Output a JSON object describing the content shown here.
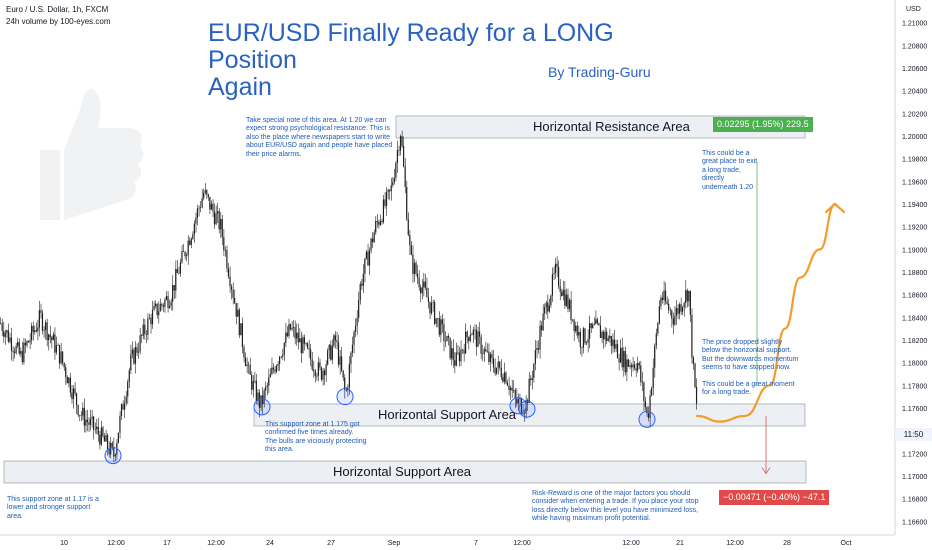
{
  "header": {
    "symbol": "Euro / U.S. Dollar, 1h, FXCM",
    "volume_label": "24h volume by 100-eyes.com",
    "currency": "USD"
  },
  "title": {
    "line1": "EUR/USD Finally Ready for a LONG Position",
    "line2": "Again",
    "author": "By Trading-Guru"
  },
  "colors": {
    "title": "#2962c4",
    "candle": "#1f1f1f",
    "zone_fill": "#eceff3",
    "projection": "#f39c2a",
    "profit": "#4caf50",
    "loss": "#e04a4a",
    "circle": "#2962ff"
  },
  "annotations": {
    "resistance_note": "Take special note of this area. At 1.20 we can expect strong psychological resistance. This is also the place where newspapers start to write about EUR/USD again and people have placed their price alarms.",
    "exit_note": "This could be a great place to exit a long trade, directly underneath 1.20",
    "drop_note": "The price dropped slightly below the horizontal support. But the downwards momentum seems to have stopped now.",
    "moment_note": "This could be a great moment for a long trade.",
    "support_1175_note": "This support zone at 1.175 got confirmed five times already. The bulls are viciously protecting this area.",
    "support_117_note": "This support zone at 1.17 is a lower and stronger support area.",
    "risk_reward_note": "Risk-Reward is one of the major factors you should consider when entering a trade. If you place your stop loss directly below this level you have minimized loss, while having maximum profit potential."
  },
  "zones": {
    "resistance_label": "Horizontal Resistance Area",
    "support_upper_label": "Horizontal Support Area",
    "support_lower_label": "Horizontal Support Area"
  },
  "position": {
    "profit_label": "0.02295 (1.95%) 229.5",
    "loss_label": "−0.00471 (−0.40%) −47.1"
  },
  "price_tag": "11:50",
  "chart_data": {
    "type": "candlestick",
    "title": "EUR/USD Finally Ready for a LONG Position Again",
    "ylim": [
      1.1635,
      1.212
    ],
    "y_ticks": [
      "1.21200",
      "1.21000",
      "1.20800",
      "1.20600",
      "1.20400",
      "1.20200",
      "1.20000",
      "1.19800",
      "1.19600",
      "1.19400",
      "1.19200",
      "1.19000",
      "1.18800",
      "1.18600",
      "1.18400",
      "1.18200",
      "1.18000",
      "1.17800",
      "1.17600",
      "1.17400",
      "1.17200",
      "1.17000",
      "1.16800",
      "1.16600"
    ],
    "x_ticks": [
      "10",
      "12:00",
      "17",
      "12:00",
      "24",
      "27",
      "Sep",
      "7",
      "12:00",
      "12:00",
      "21",
      "12:00",
      "28",
      "Oct"
    ],
    "price_path": [
      [
        0,
        1.1835
      ],
      [
        20,
        1.1805
      ],
      [
        40,
        1.184
      ],
      [
        60,
        1.1805
      ],
      [
        80,
        1.1755
      ],
      [
        100,
        1.1735
      ],
      [
        113,
        1.1718
      ],
      [
        130,
        1.18
      ],
      [
        150,
        1.184
      ],
      [
        170,
        1.186
      ],
      [
        185,
        1.19
      ],
      [
        203,
        1.195
      ],
      [
        220,
        1.192
      ],
      [
        235,
        1.185
      ],
      [
        248,
        1.179
      ],
      [
        260,
        1.1762
      ],
      [
        275,
        1.18
      ],
      [
        290,
        1.183
      ],
      [
        305,
        1.181
      ],
      [
        320,
        1.179
      ],
      [
        335,
        1.182
      ],
      [
        345,
        1.177
      ],
      [
        360,
        1.187
      ],
      [
        375,
        1.192
      ],
      [
        390,
        1.195
      ],
      [
        400,
        1.2005
      ],
      [
        410,
        1.189
      ],
      [
        425,
        1.186
      ],
      [
        440,
        1.183
      ],
      [
        455,
        1.18
      ],
      [
        470,
        1.183
      ],
      [
        490,
        1.18
      ],
      [
        505,
        1.179
      ],
      [
        515,
        1.1765
      ],
      [
        525,
        1.1762
      ],
      [
        540,
        1.183
      ],
      [
        555,
        1.188
      ],
      [
        568,
        1.185
      ],
      [
        580,
        1.182
      ],
      [
        595,
        1.183
      ],
      [
        610,
        1.182
      ],
      [
        625,
        1.18
      ],
      [
        637,
        1.18
      ],
      [
        647,
        1.175
      ],
      [
        660,
        1.186
      ],
      [
        673,
        1.184
      ],
      [
        688,
        1.1865
      ],
      [
        692,
        1.18
      ],
      [
        697,
        1.175
      ]
    ],
    "zones": [
      {
        "name": "Horizontal Resistance Area",
        "low": 1.2,
        "high": 1.202,
        "x_start": "24",
        "x_end": "28"
      },
      {
        "name": "Horizontal Support Area",
        "low": 1.175,
        "high": 1.1765,
        "x_start": "24",
        "x_end": "28"
      },
      {
        "name": "Horizontal Support Area",
        "low": 1.1697,
        "high": 1.1713,
        "x_start": "10",
        "x_end": "28"
      }
    ],
    "long_position": {
      "entry": 1.17545,
      "target": 1.1984,
      "stop": 1.17074,
      "profit": "0.02295 (1.95%) 229.5",
      "loss": "−0.00471 (−0.40%) −47.1"
    },
    "projection_path": [
      [
        697,
        1.1753
      ],
      [
        720,
        1.1748
      ],
      [
        745,
        1.1753
      ],
      [
        770,
        1.178
      ],
      [
        785,
        1.183
      ],
      [
        800,
        1.1875
      ],
      [
        820,
        1.19
      ],
      [
        835,
        1.194
      ]
    ],
    "support_touches": [
      [
        113,
        1.1718
      ],
      [
        262,
        1.1761
      ],
      [
        345,
        1.177
      ],
      [
        518,
        1.1762
      ],
      [
        527,
        1.1759
      ],
      [
        647,
        1.175
      ]
    ],
    "price_tag_value": 1.1751
  }
}
